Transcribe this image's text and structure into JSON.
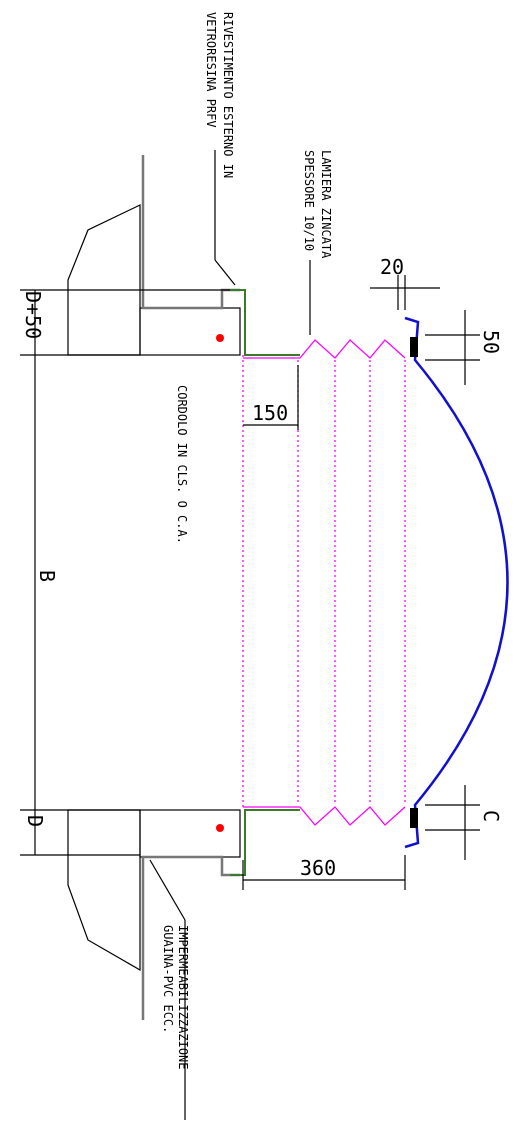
{
  "annotations": {
    "rivestimento": [
      "RIVESTIMENTO ESTERNO IN",
      "VETRORESINA PRFV"
    ],
    "lamiera": [
      "LAMIERA ZINCATA",
      "SPESSORE 10/10"
    ],
    "cordolo": "CORDOLO IN CLS. O C.A.",
    "impermeabilizzazione": [
      "IMPERMEABILIZZAZIONE",
      "GUAINA-PVC ECC."
    ]
  },
  "dimensions": {
    "d_plus_50": "D+50",
    "b": "B",
    "d": "D",
    "w150": "150",
    "w360": "360",
    "w20": "20",
    "h50": "50",
    "c": "C"
  }
}
